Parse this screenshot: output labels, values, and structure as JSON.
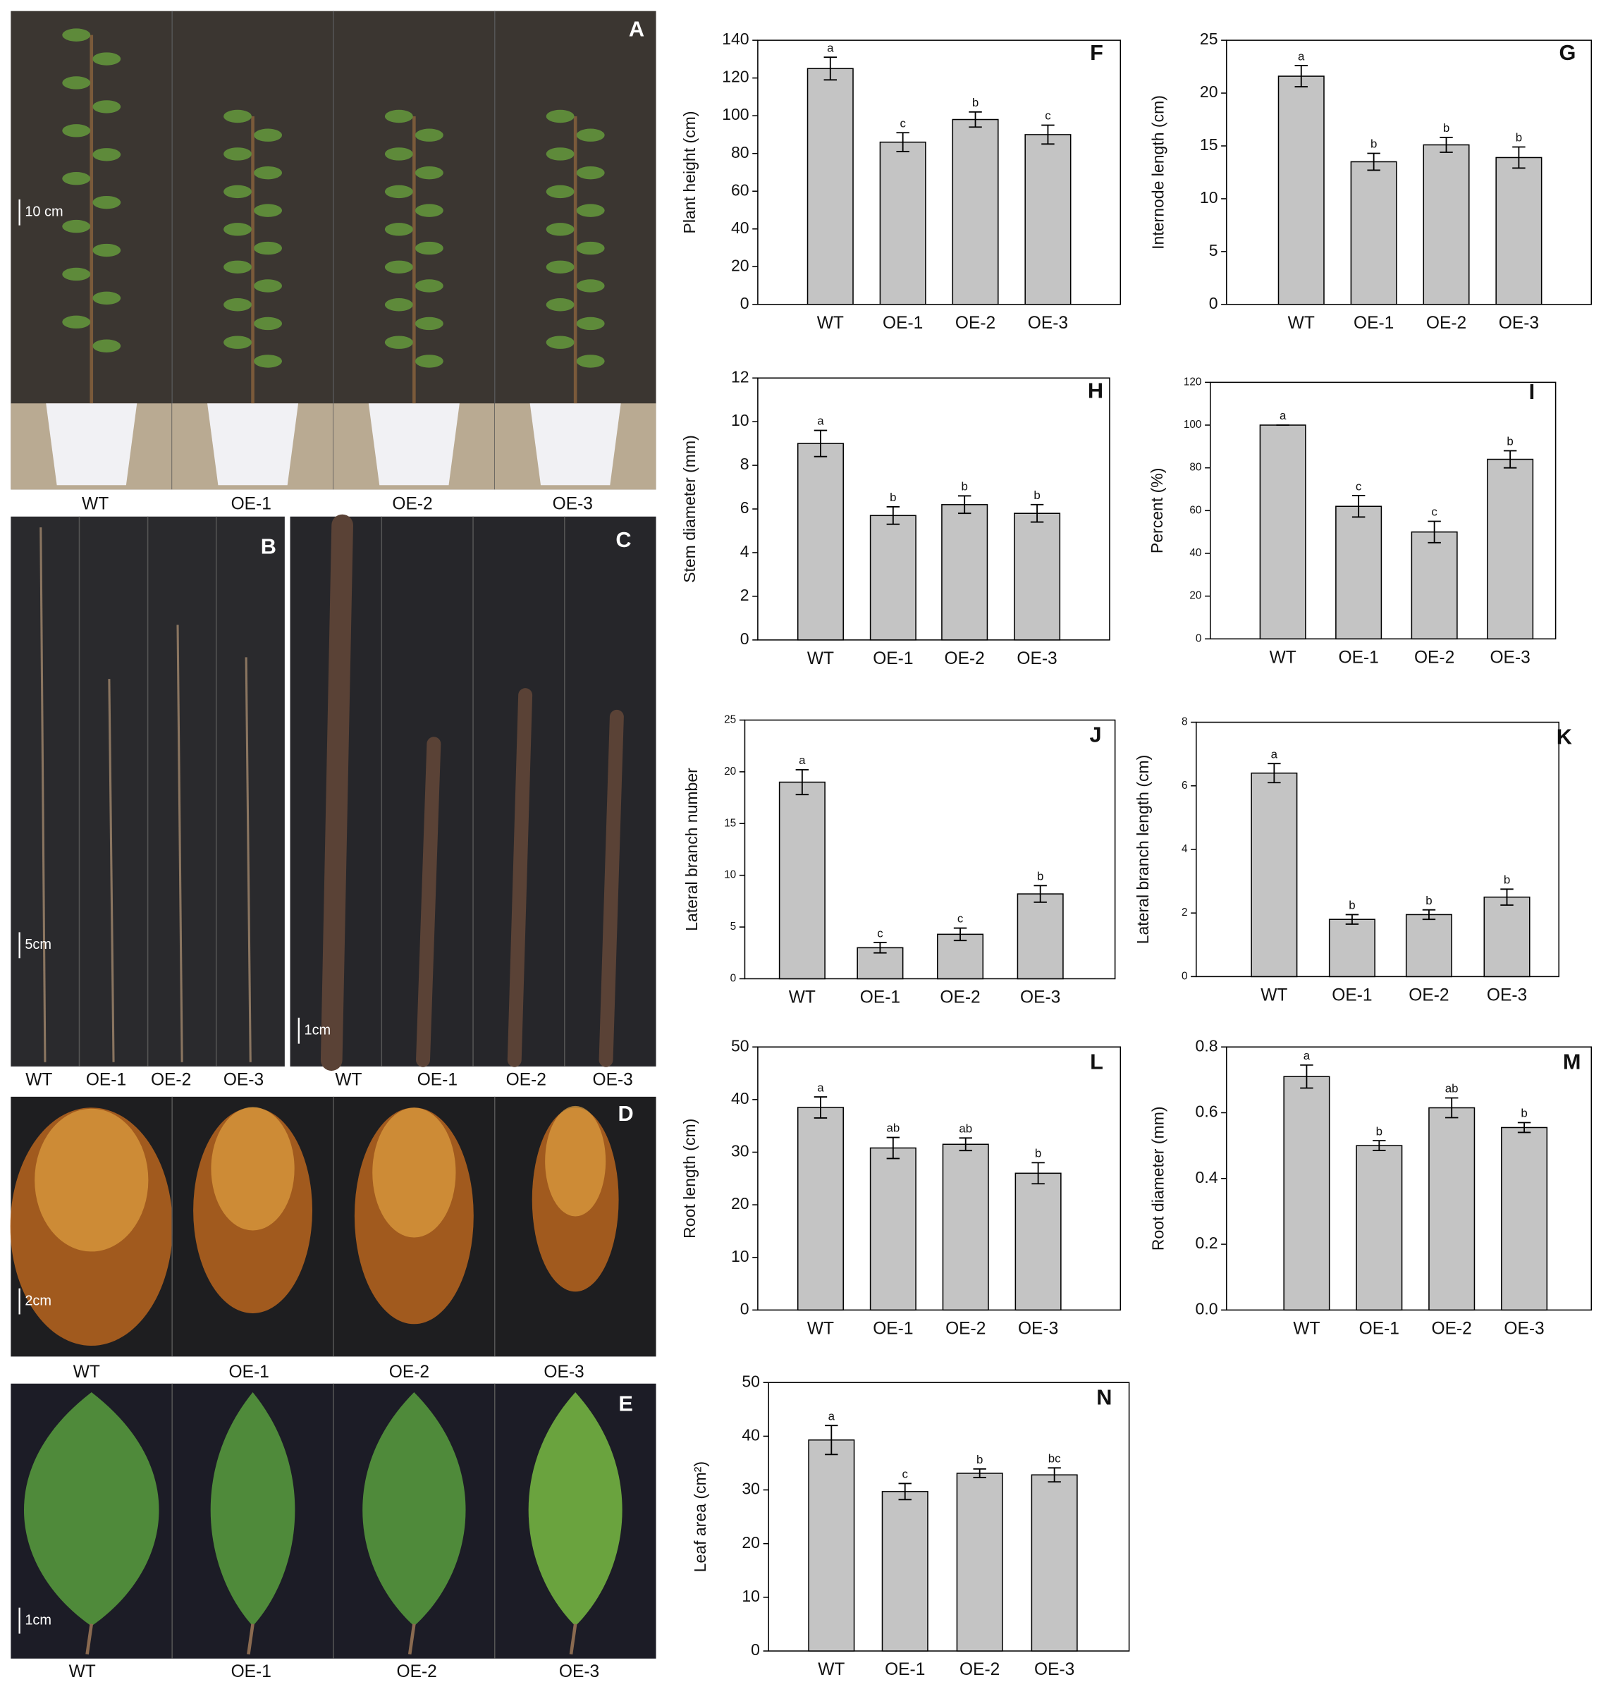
{
  "photo_panels": [
    {
      "panel": "A",
      "scale_label": "10 cm",
      "labels": [
        "WT",
        "OE-1",
        "OE-2",
        "OE-3"
      ]
    },
    {
      "panel": "B",
      "scale_label": "5cm",
      "labels": [
        "WT",
        "OE-1",
        "OE-2",
        "OE-3"
      ]
    },
    {
      "panel": "C",
      "scale_label": "1cm",
      "labels": [
        "WT",
        "OE-1",
        "OE-2",
        "OE-3"
      ]
    },
    {
      "panel": "D",
      "scale_label": "2cm",
      "labels": [
        "WT",
        "OE-1",
        "OE-2",
        "OE-3"
      ]
    },
    {
      "panel": "E",
      "scale_label": "1cm",
      "labels": [
        "WT",
        "OE-1",
        "OE-2",
        "OE-3"
      ]
    }
  ],
  "chart_data": [
    {
      "type": "bar",
      "panel": "F",
      "ylabel": "Plant height (cm)",
      "categories": [
        "WT",
        "OE-1",
        "OE-2",
        "OE-3"
      ],
      "values": [
        125,
        86,
        98,
        90
      ],
      "errors": [
        6,
        5,
        4,
        5
      ],
      "annotations": [
        "a",
        "c",
        "b",
        "c"
      ],
      "color": "#c4c4c4",
      "ylim": [
        0,
        140
      ],
      "yticks": [
        0,
        20,
        40,
        60,
        80,
        100,
        120,
        140
      ]
    },
    {
      "type": "bar",
      "panel": "G",
      "ylabel": "Internode length (cm)",
      "categories": [
        "WT",
        "OE-1",
        "OE-2",
        "OE-3"
      ],
      "values": [
        21.6,
        13.5,
        15.1,
        13.9
      ],
      "errors": [
        1,
        0.8,
        0.7,
        1
      ],
      "annotations": [
        "a",
        "b",
        "b",
        "b"
      ],
      "color": "#c4c4c4",
      "ylim": [
        0,
        25
      ],
      "yticks": [
        0,
        5,
        10,
        15,
        20,
        25
      ]
    },
    {
      "type": "bar",
      "panel": "H",
      "ylabel": "Stem diameter (mm)",
      "categories": [
        "WT",
        "OE-1",
        "OE-2",
        "OE-3"
      ],
      "values": [
        9.0,
        5.7,
        6.2,
        5.8
      ],
      "errors": [
        0.6,
        0.4,
        0.4,
        0.4
      ],
      "annotations": [
        "a",
        "b",
        "b",
        "b"
      ],
      "color": "#c4c4c4",
      "ylim": [
        0,
        12
      ],
      "yticks": [
        0,
        2,
        4,
        6,
        8,
        10,
        12
      ]
    },
    {
      "type": "bar",
      "panel": "I",
      "ylabel": "Percent (%)",
      "categories": [
        "WT",
        "OE-1",
        "OE-2",
        "OE-3"
      ],
      "values": [
        100,
        62,
        50,
        84
      ],
      "errors": [
        0,
        5,
        5,
        4
      ],
      "annotations": [
        "a",
        "c",
        "c",
        "b"
      ],
      "color": "#c4c4c4",
      "ylim": [
        0,
        120
      ],
      "yticks": [
        0,
        20,
        40,
        60,
        80,
        100,
        120
      ]
    },
    {
      "type": "bar",
      "panel": "J",
      "ylabel": "Lateral branch number",
      "categories": [
        "WT",
        "OE-1",
        "OE-2",
        "OE-3"
      ],
      "values": [
        19,
        3.0,
        4.3,
        8.2
      ],
      "errors": [
        1.2,
        0.5,
        0.6,
        0.8
      ],
      "annotations": [
        "a",
        "c",
        "c",
        "b"
      ],
      "color": "#c4c4c4",
      "ylim": [
        0,
        25
      ],
      "yticks": [
        0,
        5,
        10,
        15,
        20,
        25
      ]
    },
    {
      "type": "bar",
      "panel": "K",
      "ylabel": "Lateral branch length (cm)",
      "categories": [
        "WT",
        "OE-1",
        "OE-2",
        "OE-3"
      ],
      "values": [
        6.4,
        1.8,
        1.95,
        2.5
      ],
      "errors": [
        0.3,
        0.15,
        0.15,
        0.25
      ],
      "annotations": [
        "a",
        "b",
        "b",
        "b"
      ],
      "color": "#c4c4c4",
      "ylim": [
        0,
        8
      ],
      "yticks": [
        0,
        2,
        4,
        6,
        8
      ]
    },
    {
      "type": "bar",
      "panel": "L",
      "ylabel": "Root length (cm)",
      "categories": [
        "WT",
        "OE-1",
        "OE-2",
        "OE-3"
      ],
      "values": [
        38.5,
        30.8,
        31.5,
        26
      ],
      "errors": [
        2,
        2,
        1.2,
        2
      ],
      "annotations": [
        "a",
        "ab",
        "ab",
        "b"
      ],
      "color": "#c4c4c4",
      "ylim": [
        0,
        50
      ],
      "yticks": [
        0,
        10,
        20,
        30,
        40,
        50
      ]
    },
    {
      "type": "bar",
      "panel": "M",
      "ylabel": "Root diameter (mm)",
      "categories": [
        "WT",
        "OE-1",
        "OE-2",
        "OE-3"
      ],
      "values": [
        0.71,
        0.5,
        0.615,
        0.555
      ],
      "errors": [
        0.035,
        0.015,
        0.03,
        0.015
      ],
      "annotations": [
        "a",
        "b",
        "ab",
        "b"
      ],
      "color": "#c4c4c4",
      "ylim": [
        0,
        0.8
      ],
      "yticks": [
        {
          "value": 0,
          "label": "0.0"
        },
        0.2,
        0.4,
        0.6,
        0.8
      ]
    },
    {
      "type": "bar",
      "panel": "N",
      "ylabel": "Leaf area (cm²)",
      "categories": [
        "WT",
        "OE-1",
        "OE-2",
        "OE-3"
      ],
      "values": [
        39.3,
        29.7,
        33.1,
        32.8
      ],
      "errors": [
        2.7,
        1.5,
        0.8,
        1.3
      ],
      "annotations": [
        "a",
        "c",
        "b",
        "bc"
      ],
      "color": "#c4c4c4",
      "ylim": [
        0,
        50
      ],
      "yticks": [
        0,
        10,
        20,
        30,
        40,
        50
      ]
    }
  ]
}
